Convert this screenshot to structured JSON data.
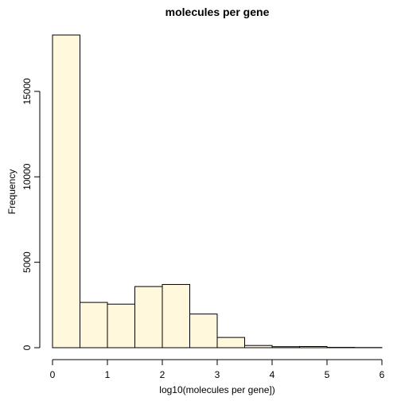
{
  "chart_data": {
    "type": "bar",
    "title": "molecules per gene",
    "xlabel": "log10(molecules per gene])",
    "ylabel": "Frequency",
    "bin_edges": [
      0,
      0.5,
      1,
      1.5,
      2,
      2.5,
      3,
      3.5,
      4,
      4.5,
      5,
      5.5,
      6
    ],
    "values": [
      18300,
      2650,
      2550,
      3580,
      3700,
      1970,
      600,
      130,
      60,
      70,
      20,
      10
    ],
    "xlim": [
      0,
      6
    ],
    "ylim": [
      0,
      18300
    ],
    "x_ticks": [
      0,
      1,
      2,
      3,
      4,
      5,
      6
    ],
    "x_tick_labels": [
      "0",
      "1",
      "2",
      "3",
      "4",
      "5",
      "6"
    ],
    "y_ticks": [
      0,
      5000,
      10000,
      15000
    ],
    "y_tick_labels": [
      "0",
      "5000",
      "10000",
      "15000"
    ],
    "grid": false,
    "legend": "none",
    "bar_color": "#fff8dc",
    "bar_edge_color": "#000000"
  }
}
